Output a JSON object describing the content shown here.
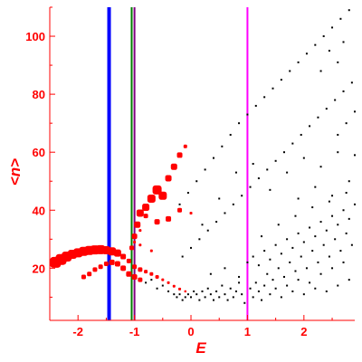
{
  "chart_data": {
    "type": "scatter",
    "title": "",
    "xlabel": "E",
    "ylabel": "<n>",
    "xlim": [
      -2.5,
      2.9
    ],
    "ylim": [
      2,
      110
    ],
    "xticks": [
      -2,
      -1,
      0,
      1,
      2
    ],
    "yticks": [
      20,
      40,
      60,
      80,
      100
    ],
    "xtick_labels": [
      "-2",
      "-1",
      "0",
      "1",
      "2"
    ],
    "ytick_labels": [
      "20",
      "40",
      "60",
      "80",
      "100"
    ],
    "grid": false,
    "legend": "none",
    "colors": {
      "axis": "#ff0000",
      "red_points": "#ff0000",
      "black_points": "#000000",
      "blue_line": "#0000ff",
      "green_line": "#008000",
      "purple_line": "#800080",
      "magenta_line": "#ff00ff"
    },
    "vertical_lines": [
      {
        "x": -1.45,
        "color": "#0000ff",
        "width": "thick"
      },
      {
        "x": -1.05,
        "color": "#008000",
        "width": "thin"
      },
      {
        "x": -1.0,
        "color": "#800080",
        "width": "thin"
      },
      {
        "x": 1.0,
        "color": "#ff00ff",
        "width": "thin"
      }
    ],
    "red_series": {
      "description_from_figure": "large red markers along upper branches",
      "points": [
        {
          "x": -2.4,
          "y": 22,
          "s": 6
        },
        {
          "x": -2.3,
          "y": 23,
          "s": 6
        },
        {
          "x": -2.2,
          "y": 24,
          "s": 5.5
        },
        {
          "x": -2.1,
          "y": 24.8,
          "s": 5
        },
        {
          "x": -2.0,
          "y": 25.3,
          "s": 5
        },
        {
          "x": -1.9,
          "y": 25.8,
          "s": 5
        },
        {
          "x": -1.8,
          "y": 26.1,
          "s": 5
        },
        {
          "x": -1.7,
          "y": 26.3,
          "s": 5
        },
        {
          "x": -1.6,
          "y": 26.4,
          "s": 5
        },
        {
          "x": -1.5,
          "y": 26.2,
          "s": 4.5
        },
        {
          "x": -1.4,
          "y": 25.8,
          "s": 4.5
        },
        {
          "x": -1.3,
          "y": 25.2,
          "s": 4
        },
        {
          "x": -1.2,
          "y": 24.0,
          "s": 3
        },
        {
          "x": -1.1,
          "y": 22.5,
          "s": 2.5
        },
        {
          "x": -1.0,
          "y": 20.5,
          "s": 2.5
        },
        {
          "x": -0.9,
          "y": 19.5,
          "s": 2.5
        },
        {
          "x": -0.8,
          "y": 18.8,
          "s": 2
        },
        {
          "x": -0.7,
          "y": 18.0,
          "s": 2
        },
        {
          "x": -0.6,
          "y": 17.0,
          "s": 2
        },
        {
          "x": -0.5,
          "y": 16.0,
          "s": 1.5
        },
        {
          "x": -0.4,
          "y": 15.0,
          "s": 1.5
        },
        {
          "x": -0.3,
          "y": 13.8,
          "s": 1.5
        },
        {
          "x": -0.2,
          "y": 12.8,
          "s": 1.5
        },
        {
          "x": -0.1,
          "y": 12.0,
          "s": 1.2
        },
        {
          "x": -1.9,
          "y": 17,
          "s": 2.5
        },
        {
          "x": -1.8,
          "y": 18,
          "s": 2.5
        },
        {
          "x": -1.7,
          "y": 19.5,
          "s": 2.5
        },
        {
          "x": -1.6,
          "y": 20.5,
          "s": 2.5
        },
        {
          "x": -1.5,
          "y": 21.5,
          "s": 2.5
        },
        {
          "x": -1.4,
          "y": 22.0,
          "s": 3
        },
        {
          "x": -1.3,
          "y": 21.5,
          "s": 3
        },
        {
          "x": -1.2,
          "y": 20.0,
          "s": 3
        },
        {
          "x": -1.1,
          "y": 18.0,
          "s": 3
        },
        {
          "x": -1.0,
          "y": 17.0,
          "s": 3
        },
        {
          "x": -0.9,
          "y": 16.0,
          "s": 2.5
        },
        {
          "x": -1.05,
          "y": 27,
          "s": 2.5
        },
        {
          "x": -1.0,
          "y": 31,
          "s": 3
        },
        {
          "x": -0.95,
          "y": 35,
          "s": 3.5
        },
        {
          "x": -0.9,
          "y": 39,
          "s": 4
        },
        {
          "x": -0.8,
          "y": 41,
          "s": 4
        },
        {
          "x": -0.7,
          "y": 44,
          "s": 4.5
        },
        {
          "x": -0.6,
          "y": 47,
          "s": 5
        },
        {
          "x": -0.5,
          "y": 45,
          "s": 4.5
        },
        {
          "x": -0.4,
          "y": 51,
          "s": 3.5
        },
        {
          "x": -0.3,
          "y": 55,
          "s": 3.5
        },
        {
          "x": -0.2,
          "y": 59,
          "s": 3
        },
        {
          "x": -0.1,
          "y": 62,
          "s": 2
        },
        {
          "x": -1.0,
          "y": 29,
          "s": 1.5
        },
        {
          "x": -0.9,
          "y": 33,
          "s": 1.5
        },
        {
          "x": -0.8,
          "y": 38,
          "s": 2.5
        },
        {
          "x": -0.6,
          "y": 36,
          "s": 3
        },
        {
          "x": -0.4,
          "y": 37,
          "s": 3
        },
        {
          "x": -0.2,
          "y": 40,
          "s": 2.5
        },
        {
          "x": 0.0,
          "y": 39,
          "s": 1.5
        },
        {
          "x": -0.9,
          "y": 28,
          "s": 1.5
        },
        {
          "x": -0.7,
          "y": 26,
          "s": 1.5
        }
      ]
    },
    "black_series": {
      "points": [
        {
          "x": -0.8,
          "y": 15
        },
        {
          "x": -0.7,
          "y": 16
        },
        {
          "x": -0.6,
          "y": 13
        },
        {
          "x": -0.5,
          "y": 14
        },
        {
          "x": -0.4,
          "y": 12
        },
        {
          "x": -0.3,
          "y": 11
        },
        {
          "x": -0.25,
          "y": 10
        },
        {
          "x": -0.2,
          "y": 11
        },
        {
          "x": -0.15,
          "y": 9
        },
        {
          "x": -0.1,
          "y": 10
        },
        {
          "x": -0.05,
          "y": 11
        },
        {
          "x": 0.0,
          "y": 10
        },
        {
          "x": 0.05,
          "y": 12
        },
        {
          "x": 0.1,
          "y": 11
        },
        {
          "x": 0.15,
          "y": 9
        },
        {
          "x": 0.2,
          "y": 12
        },
        {
          "x": 0.25,
          "y": 10
        },
        {
          "x": 0.3,
          "y": 13
        },
        {
          "x": 0.35,
          "y": 11
        },
        {
          "x": 0.4,
          "y": 9
        },
        {
          "x": 0.45,
          "y": 12
        },
        {
          "x": 0.5,
          "y": 10
        },
        {
          "x": 0.55,
          "y": 14
        },
        {
          "x": 0.6,
          "y": 11
        },
        {
          "x": 0.65,
          "y": 9
        },
        {
          "x": 0.7,
          "y": 13
        },
        {
          "x": 0.75,
          "y": 10
        },
        {
          "x": 0.8,
          "y": 12
        },
        {
          "x": 0.85,
          "y": 15
        },
        {
          "x": 0.9,
          "y": 11
        },
        {
          "x": 0.95,
          "y": 8
        },
        {
          "x": 1.05,
          "y": 13
        },
        {
          "x": 1.1,
          "y": 10
        },
        {
          "x": 1.15,
          "y": 15
        },
        {
          "x": 1.2,
          "y": 12
        },
        {
          "x": 1.25,
          "y": 9
        },
        {
          "x": 1.3,
          "y": 14
        },
        {
          "x": 1.35,
          "y": 18
        },
        {
          "x": 1.4,
          "y": 11
        },
        {
          "x": 1.45,
          "y": 16
        },
        {
          "x": 1.5,
          "y": 13
        },
        {
          "x": 1.55,
          "y": 20
        },
        {
          "x": 1.6,
          "y": 10
        },
        {
          "x": 1.65,
          "y": 17
        },
        {
          "x": 1.7,
          "y": 14
        },
        {
          "x": 1.75,
          "y": 22
        },
        {
          "x": 1.8,
          "y": 12
        },
        {
          "x": 1.85,
          "y": 19
        },
        {
          "x": 1.9,
          "y": 16
        },
        {
          "x": 1.95,
          "y": 24
        },
        {
          "x": 2.0,
          "y": 11
        },
        {
          "x": 2.05,
          "y": 20
        },
        {
          "x": 2.1,
          "y": 15
        },
        {
          "x": 2.15,
          "y": 26
        },
        {
          "x": 2.2,
          "y": 13
        },
        {
          "x": 2.25,
          "y": 22
        },
        {
          "x": 2.3,
          "y": 18
        },
        {
          "x": 2.35,
          "y": 28
        },
        {
          "x": 2.4,
          "y": 12
        },
        {
          "x": 2.45,
          "y": 24
        },
        {
          "x": 2.5,
          "y": 20
        },
        {
          "x": 2.55,
          "y": 30
        },
        {
          "x": 2.6,
          "y": 14
        },
        {
          "x": 2.65,
          "y": 26
        },
        {
          "x": 2.7,
          "y": 22
        },
        {
          "x": 2.75,
          "y": 32
        },
        {
          "x": 2.8,
          "y": 16
        },
        {
          "x": 2.85,
          "y": 28
        },
        {
          "x": 1.0,
          "y": 22
        },
        {
          "x": 1.1,
          "y": 24
        },
        {
          "x": 1.2,
          "y": 21
        },
        {
          "x": 1.3,
          "y": 26
        },
        {
          "x": 1.4,
          "y": 23
        },
        {
          "x": 1.5,
          "y": 28
        },
        {
          "x": 1.6,
          "y": 25
        },
        {
          "x": 1.7,
          "y": 30
        },
        {
          "x": 1.8,
          "y": 27
        },
        {
          "x": 1.9,
          "y": 32
        },
        {
          "x": 2.0,
          "y": 29
        },
        {
          "x": 2.1,
          "y": 34
        },
        {
          "x": 2.2,
          "y": 31
        },
        {
          "x": 2.3,
          "y": 36
        },
        {
          "x": 2.4,
          "y": 33
        },
        {
          "x": 2.5,
          "y": 38
        },
        {
          "x": 2.6,
          "y": 35
        },
        {
          "x": 2.7,
          "y": 40
        },
        {
          "x": 2.8,
          "y": 37
        },
        {
          "x": 2.9,
          "y": 42
        },
        {
          "x": -0.15,
          "y": 24
        },
        {
          "x": 0.0,
          "y": 27
        },
        {
          "x": 0.15,
          "y": 30
        },
        {
          "x": 0.3,
          "y": 33
        },
        {
          "x": 0.45,
          "y": 36
        },
        {
          "x": 0.6,
          "y": 39
        },
        {
          "x": 0.75,
          "y": 42
        },
        {
          "x": 0.9,
          "y": 45
        },
        {
          "x": 1.05,
          "y": 48
        },
        {
          "x": 1.2,
          "y": 51
        },
        {
          "x": 1.35,
          "y": 54
        },
        {
          "x": 1.5,
          "y": 57
        },
        {
          "x": 1.65,
          "y": 60
        },
        {
          "x": 1.8,
          "y": 63
        },
        {
          "x": 1.95,
          "y": 66
        },
        {
          "x": 2.1,
          "y": 69
        },
        {
          "x": 2.25,
          "y": 72
        },
        {
          "x": 2.4,
          "y": 75
        },
        {
          "x": 2.55,
          "y": 78
        },
        {
          "x": 2.7,
          "y": 81
        },
        {
          "x": 2.85,
          "y": 84
        },
        {
          "x": -0.2,
          "y": 42
        },
        {
          "x": -0.05,
          "y": 46
        },
        {
          "x": 0.1,
          "y": 50
        },
        {
          "x": 0.25,
          "y": 54
        },
        {
          "x": 0.4,
          "y": 58
        },
        {
          "x": 0.55,
          "y": 62
        },
        {
          "x": 0.7,
          "y": 66
        },
        {
          "x": 0.85,
          "y": 70
        },
        {
          "x": 1.0,
          "y": 73
        },
        {
          "x": 1.15,
          "y": 76
        },
        {
          "x": 1.3,
          "y": 79
        },
        {
          "x": 1.45,
          "y": 82
        },
        {
          "x": 1.6,
          "y": 85
        },
        {
          "x": 1.75,
          "y": 88
        },
        {
          "x": 1.9,
          "y": 91
        },
        {
          "x": 2.05,
          "y": 94
        },
        {
          "x": 2.2,
          "y": 97
        },
        {
          "x": 2.35,
          "y": 100
        },
        {
          "x": 2.5,
          "y": 103
        },
        {
          "x": 2.65,
          "y": 106
        },
        {
          "x": 2.8,
          "y": 109
        },
        {
          "x": 0.2,
          "y": 35
        },
        {
          "x": 0.5,
          "y": 44
        },
        {
          "x": 0.8,
          "y": 53
        },
        {
          "x": 1.1,
          "y": 56
        },
        {
          "x": 1.4,
          "y": 47
        },
        {
          "x": 1.7,
          "y": 53
        },
        {
          "x": 2.0,
          "y": 58
        },
        {
          "x": 2.3,
          "y": 55
        },
        {
          "x": 2.6,
          "y": 60
        },
        {
          "x": 2.9,
          "y": 59
        },
        {
          "x": 1.9,
          "y": 44
        },
        {
          "x": 2.2,
          "y": 48
        },
        {
          "x": 2.5,
          "y": 45
        },
        {
          "x": 2.8,
          "y": 50
        },
        {
          "x": 0.35,
          "y": 18
        },
        {
          "x": 0.6,
          "y": 20
        },
        {
          "x": 0.85,
          "y": 17
        },
        {
          "x": 1.25,
          "y": 31
        },
        {
          "x": 1.55,
          "y": 35
        },
        {
          "x": 1.85,
          "y": 38
        },
        {
          "x": 2.15,
          "y": 41
        },
        {
          "x": 2.45,
          "y": 43
        },
        {
          "x": 2.75,
          "y": 46
        },
        {
          "x": 2.6,
          "y": 66
        },
        {
          "x": 2.75,
          "y": 70
        },
        {
          "x": 2.9,
          "y": 74
        },
        {
          "x": 2.3,
          "y": 88
        },
        {
          "x": 2.45,
          "y": 95
        },
        {
          "x": 2.6,
          "y": 91
        },
        {
          "x": 2.7,
          "y": 98
        }
      ]
    }
  }
}
